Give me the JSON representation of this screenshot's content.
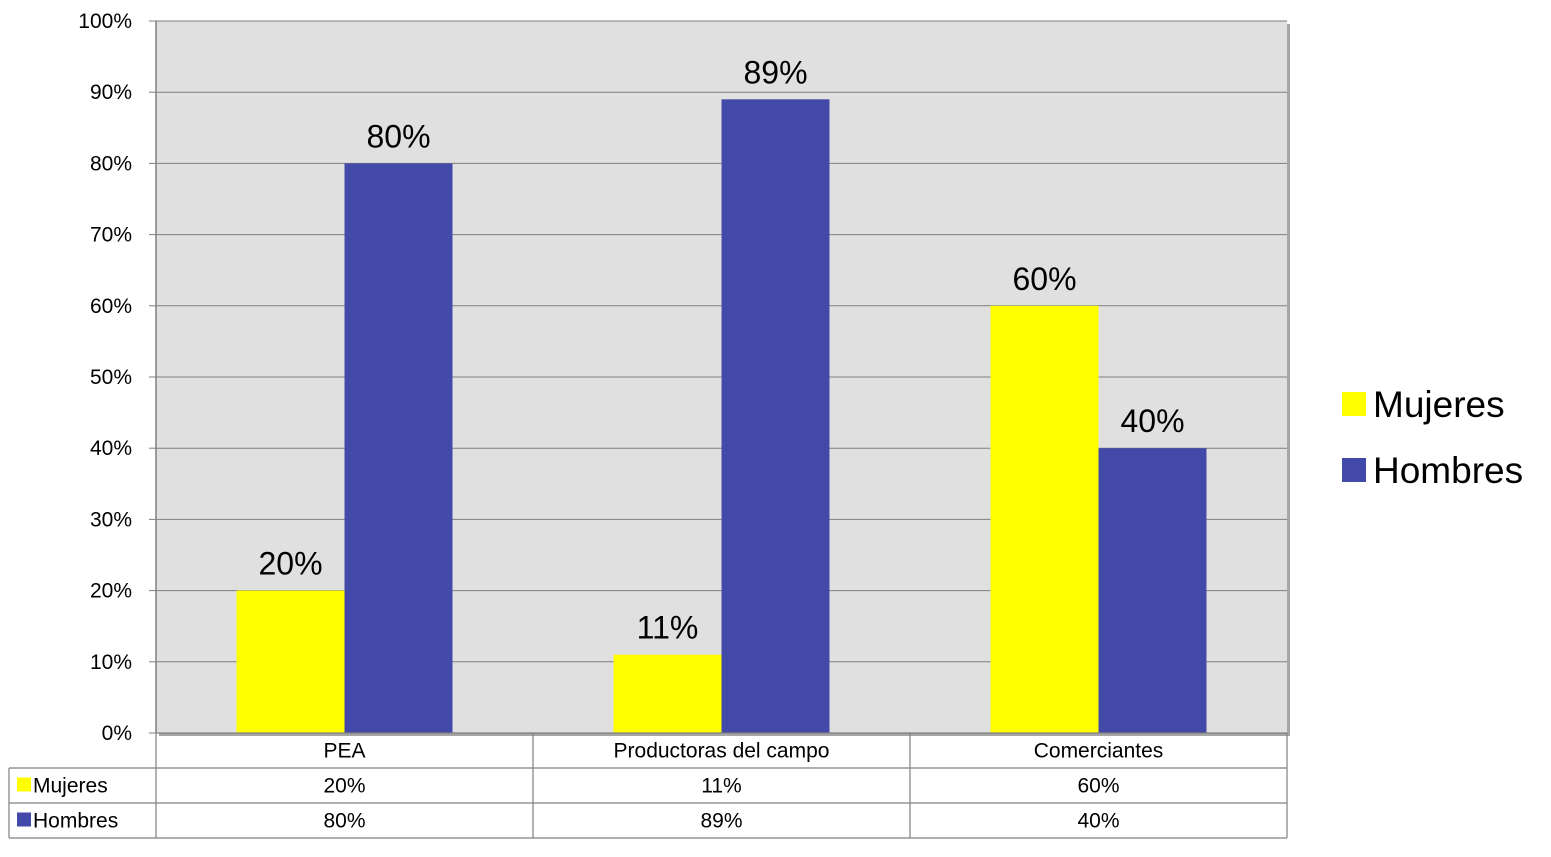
{
  "chart_data": {
    "type": "bar",
    "categories": [
      "PEA",
      "Productoras del campo",
      "Comerciantes"
    ],
    "series": [
      {
        "name": "Mujeres",
        "values": [
          20,
          11,
          60
        ],
        "labels": [
          "20%",
          "11%",
          "60%"
        ],
        "color": "#FFFF00"
      },
      {
        "name": "Hombres",
        "values": [
          80,
          89,
          40
        ],
        "labels": [
          "80%",
          "89%",
          "40%"
        ],
        "color": "#4349A8"
      }
    ],
    "ylim": [
      0,
      100
    ],
    "yticks": [
      0,
      10,
      20,
      30,
      40,
      50,
      60,
      70,
      80,
      90,
      100
    ],
    "ytick_labels": [
      "0%",
      "10%",
      "20%",
      "30%",
      "40%",
      "50%",
      "60%",
      "70%",
      "80%",
      "90%",
      "100%"
    ],
    "grid": true,
    "legend_position": "right",
    "data_table": true,
    "plot_background": "#E0E0E0"
  }
}
